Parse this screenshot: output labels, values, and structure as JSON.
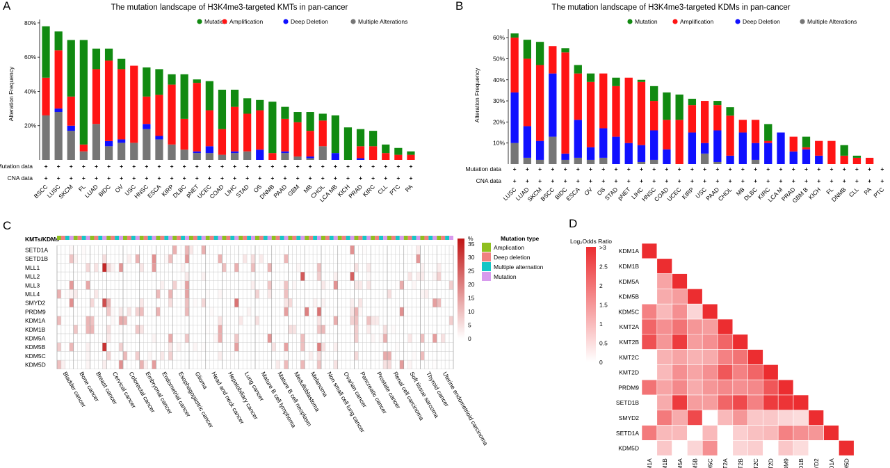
{
  "panels": {
    "A": "A",
    "B": "B",
    "C": "C",
    "D": "D"
  },
  "chart_data": [
    {
      "type": "bar",
      "stacked": true,
      "title": "The mutation landscape of H3K4me3-targeted KMTs in pan-cancer",
      "xlabel": "",
      "ylabel": "Alteration Frequency",
      "ylim": [
        0,
        82
      ],
      "y_ticks": [
        "20%",
        "40%",
        "60%",
        "80%"
      ],
      "legend_position": "top-right",
      "row_labels": [
        "Mutation data",
        "CNA data"
      ],
      "row_marker": "+",
      "categories": [
        "BSCC",
        "LUSC",
        "SKCM",
        "FL",
        "LUAD",
        "BIDC",
        "OV",
        "USC",
        "HNSC",
        "ESCA",
        "KIRP",
        "DLBC",
        "pNET",
        "UCEC",
        "COAD",
        "LIHC",
        "STAD",
        "OS",
        "DNMB",
        "PAAD",
        "GBM",
        "MB",
        "CHOL",
        "LCA MB",
        "KICH",
        "PRAD",
        "KIRC",
        "CLL",
        "PTC",
        "PA"
      ],
      "series": [
        {
          "name": "Multiple Alterations",
          "color": "#767676",
          "values": [
            26,
            28,
            17,
            5,
            21,
            8,
            10,
            10,
            18,
            12,
            9,
            6,
            4,
            4,
            3,
            4,
            5,
            0,
            0,
            4,
            2,
            1,
            8,
            0,
            0,
            0,
            0,
            0,
            0,
            0
          ]
        },
        {
          "name": "Deep Deletion",
          "color": "#1010ff",
          "values": [
            0,
            2,
            3,
            0,
            0,
            3,
            2,
            0,
            3,
            2,
            0,
            0,
            1,
            4,
            0,
            1,
            0,
            6,
            0,
            1,
            0,
            1,
            0,
            4,
            0,
            1,
            0,
            0,
            0,
            0
          ]
        },
        {
          "name": "Amplification",
          "color": "#ff1414",
          "values": [
            22,
            34,
            17,
            4,
            32,
            47,
            41,
            45,
            16,
            24,
            35,
            18,
            40,
            21,
            15,
            26,
            22,
            23,
            4,
            19,
            20,
            15,
            15,
            0,
            0,
            7,
            8,
            4,
            3,
            3
          ]
        },
        {
          "name": "Mutation",
          "color": "#118a11",
          "values": [
            30,
            11,
            33,
            61,
            12,
            7,
            6,
            0,
            17,
            15,
            6,
            26,
            2,
            17,
            23,
            10,
            9,
            6,
            30,
            7,
            6,
            11,
            4,
            22,
            19,
            10,
            9,
            5,
            4,
            2
          ]
        }
      ]
    },
    {
      "type": "bar",
      "stacked": true,
      "title": "The mutation landscape of H3K4me3-targeted KDMs in pan-cancer",
      "xlabel": "",
      "ylabel": "Alteration Frequency",
      "ylim": [
        0,
        64
      ],
      "y_ticks": [
        "10%",
        "20%",
        "30%",
        "40%",
        "50%",
        "60%"
      ],
      "legend_position": "top-right",
      "row_labels": [
        "Mutation data",
        "CNA data"
      ],
      "row_marker": "+",
      "categories": [
        "LUSC",
        "LUAD",
        "SKCM",
        "BSCC",
        "BIDC",
        "ESCA",
        "OV",
        "OS",
        "STAD",
        "pNET",
        "LIHC",
        "HNSC",
        "COAD",
        "UCEC",
        "KIRP",
        "USC",
        "PAAD",
        "CHOL",
        "MB",
        "DLBC",
        "KIRC",
        "LCA M",
        "PRAD",
        "GBM B",
        "KICH",
        "FL",
        "DNMB",
        "CLL",
        "PA",
        "PTC"
      ],
      "series": [
        {
          "name": "Multiple Alterations",
          "color": "#767676",
          "values": [
            10,
            3,
            2,
            13,
            2,
            3,
            2,
            3,
            0,
            0,
            1,
            2,
            0,
            0,
            0,
            5,
            1,
            0,
            0,
            2,
            0,
            0,
            0,
            0,
            0,
            0,
            0,
            0,
            0,
            0
          ]
        },
        {
          "name": "Deep Deletion",
          "color": "#1010ff",
          "values": [
            24,
            15,
            9,
            30,
            3,
            18,
            6,
            14,
            13,
            10,
            8,
            14,
            7,
            0,
            15,
            5,
            15,
            4,
            15,
            8,
            10,
            15,
            6,
            7,
            4,
            0,
            0,
            0,
            0,
            0
          ]
        },
        {
          "name": "Amplification",
          "color": "#ff1414",
          "values": [
            26,
            32,
            36,
            13,
            48,
            22,
            31,
            26,
            24,
            31,
            30,
            14,
            14,
            21,
            13,
            20,
            12,
            19,
            6,
            11,
            1,
            0,
            7,
            1,
            7,
            11,
            4,
            3,
            3,
            0
          ]
        },
        {
          "name": "Mutation",
          "color": "#118a11",
          "values": [
            2,
            9,
            11,
            0,
            2,
            4,
            4,
            0,
            4,
            0,
            1,
            7,
            13,
            12,
            3,
            0,
            2,
            4,
            0,
            0,
            8,
            0,
            0,
            5,
            0,
            0,
            5,
            1,
            0,
            0
          ]
        }
      ]
    },
    {
      "type": "heatmap",
      "row_header": "KMTs/KDMs",
      "rows": [
        "SETD1A",
        "SETD1B",
        "MLL1",
        "MLL2",
        "MLL3",
        "MLL4",
        "SMYD2",
        "PRDM9",
        "KDM1A",
        "KDM1B",
        "KDM5A",
        "KDM5B",
        "KDM5C",
        "KDM5D"
      ],
      "cancers": [
        "Bladder cancer",
        "Bone cancer",
        "Breast cancer",
        "Cervical cancer",
        "Colorectal cancer",
        "Embryonal cancer",
        "Endometrial cancer",
        "Esophagogastric cancer",
        "Glioma",
        "Head and neck cancer",
        "Hepatobiliary cancer",
        "Lung cancer",
        "Mature B cell lymphoma",
        "Mature B cell neoplasm",
        "Medulloblastoma",
        "Melanoma",
        "Non small cell lung cancer",
        "Ovarian cancer",
        "Pancreatic cancer",
        "Prostate cancer",
        "Renal cell carcinoma",
        "Soft tissue sarcoma",
        "Thyroid cancer",
        "Uterine endometrioid carcinoma"
      ],
      "mutation_types": [
        "Amplication",
        "Deep deletion",
        "Multiple alternation",
        "Mutation"
      ],
      "mutation_type_title": "Mutation type",
      "mutation_type_colors": [
        "#8fbf1f",
        "#f08080",
        "#16c6c6",
        "#d79aed"
      ],
      "scale_label": "%",
      "scale_ticks": [
        35,
        30,
        25,
        20,
        15,
        10,
        5,
        0
      ],
      "scale_max": 37
    },
    {
      "type": "heatmap",
      "triangular": true,
      "title": "Log₂Odds Ratio",
      "genes": [
        "KDM1A",
        "KDM1B",
        "KDM5A",
        "KDM5B",
        "KDM5C",
        "KMT2A",
        "KMT2B",
        "KMT2C",
        "KMT2D",
        "PRDM9",
        "SETD1B",
        "SMYD2",
        "SETD1A",
        "KDM5D"
      ],
      "scale_ticks": [
        ">3",
        "2.5",
        "2",
        "1.5",
        "1",
        "0.5",
        "0"
      ],
      "matrix": [
        [
          3.3
        ],
        [
          0,
          3.3
        ],
        [
          0,
          1.3,
          3.3
        ],
        [
          0,
          1.2,
          1.4,
          3.3
        ],
        [
          1.8,
          1.0,
          1.6,
          0.6,
          3.3
        ],
        [
          2.2,
          1.6,
          2.0,
          1.5,
          1.4,
          3.3
        ],
        [
          2.5,
          1.5,
          2.8,
          1.4,
          1.6,
          2.2,
          3.3
        ],
        [
          0,
          1.1,
          1.3,
          1.1,
          1.2,
          1.8,
          2.0,
          3.3
        ],
        [
          0,
          1.0,
          1.6,
          1.3,
          1.6,
          2.4,
          1.8,
          2.2,
          3.3
        ],
        [
          2.0,
          1.3,
          1.7,
          1.2,
          1.5,
          1.7,
          1.6,
          1.7,
          2.4,
          3.3
        ],
        [
          0,
          1.2,
          2.8,
          1.4,
          1.4,
          2.2,
          2.6,
          1.8,
          2.8,
          2.9,
          3.3
        ],
        [
          0,
          1.9,
          1.2,
          2.6,
          0,
          1.0,
          1.5,
          0.8,
          0.8,
          0.6,
          0.5,
          3.3
        ],
        [
          1.9,
          1.0,
          1.0,
          0,
          1.0,
          0,
          0.7,
          0.9,
          1.0,
          1.8,
          1.6,
          1.5,
          3.3
        ],
        [
          0,
          0.8,
          0,
          0.6,
          1.6,
          0,
          0.6,
          0.7,
          0,
          0.8,
          0.5,
          0,
          0,
          3.3
        ]
      ]
    }
  ]
}
